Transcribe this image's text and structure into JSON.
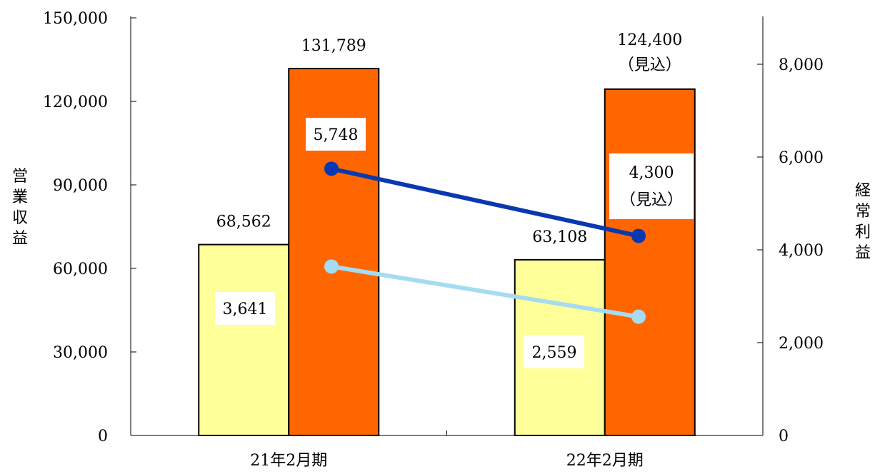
{
  "chart_data": {
    "type": "bar",
    "categories": [
      "21年2月期",
      "22年2月期"
    ],
    "left_axis": {
      "title": "営業収益",
      "range": [
        0,
        150000
      ],
      "ticks": [
        "0",
        "30,000",
        "60,000",
        "90,000",
        "120,000",
        "150,000"
      ]
    },
    "right_axis": {
      "title": "経常利益",
      "range": [
        0,
        9000
      ],
      "ticks": [
        "0",
        "2,000",
        "4,000",
        "6,000",
        "8,000"
      ]
    },
    "bar_series": [
      {
        "color": "#FFFF99",
        "values": [
          68562,
          63108
        ],
        "labels": [
          "68,562",
          "63,108"
        ],
        "label_notes": [
          "",
          ""
        ]
      },
      {
        "color": "#FF6600",
        "values": [
          131789,
          124400
        ],
        "labels": [
          "131,789",
          "124,400"
        ],
        "label_notes": [
          "",
          "（見込）"
        ]
      }
    ],
    "line_series": [
      {
        "color": "#A6DCF2",
        "values": [
          3641,
          2559
        ],
        "labels": [
          "3,641",
          "2,559"
        ],
        "label_notes": [
          "",
          ""
        ]
      },
      {
        "color": "#0A38B0",
        "values": [
          5748,
          4300
        ],
        "labels": [
          "5,748",
          "4,300"
        ],
        "label_notes": [
          "",
          "（見込）"
        ]
      }
    ],
    "grid": false,
    "legend": "none"
  }
}
